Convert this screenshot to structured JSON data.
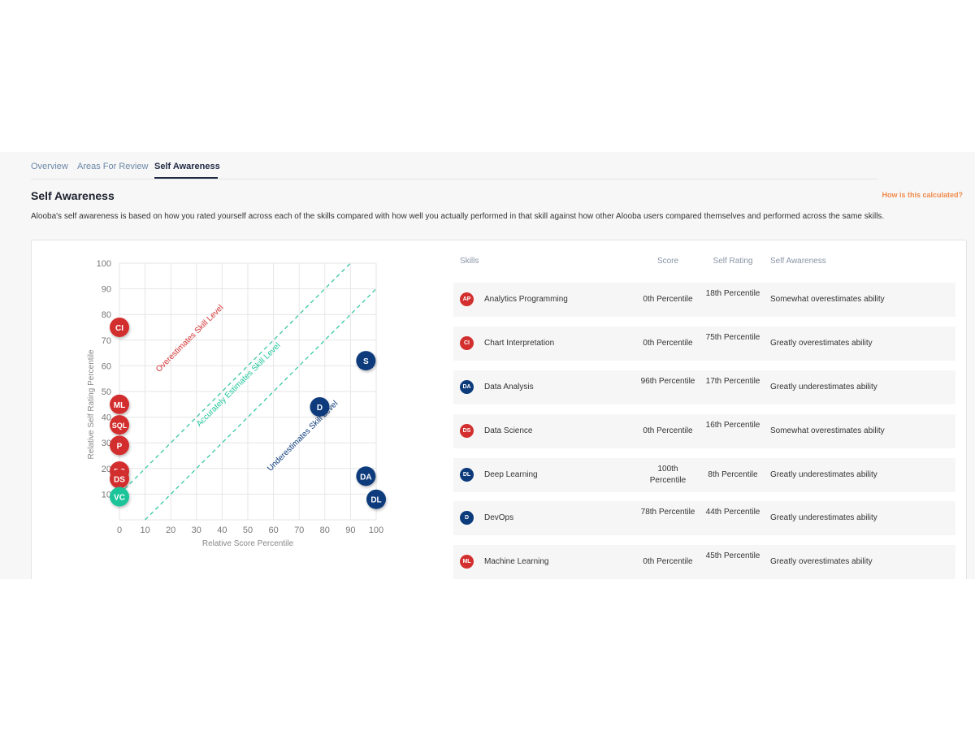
{
  "tabs": [
    {
      "label": "Overview",
      "active": false
    },
    {
      "label": "Areas For Review",
      "active": false
    },
    {
      "label": "Self Awareness",
      "active": true
    }
  ],
  "section_title": "Self Awareness",
  "help_link": "How is this calculated?",
  "description": "Alooba's self awareness is based on how you rated yourself across each of the skills compared with how well you actually performed in that skill against how other Alooba users compared themselves and performed across the same skills.",
  "colors": {
    "over": "#d32f2f",
    "under": "#0c3b7c",
    "accurate": "#1dc49a",
    "diagonal": "#3cc7a4"
  },
  "chart_data": {
    "type": "scatter",
    "xlabel": "Relative Score Percentile",
    "ylabel": "Relative Self Rating Percentile",
    "xlim": [
      0,
      100
    ],
    "ylim": [
      0,
      100
    ],
    "xticks": [
      0,
      10,
      20,
      30,
      40,
      50,
      60,
      70,
      80,
      90,
      100
    ],
    "yticks": [
      10,
      20,
      30,
      40,
      50,
      60,
      70,
      80,
      90,
      100
    ],
    "grid": true,
    "annotations": [
      {
        "text": "Overestimates Skill Level",
        "color": "over"
      },
      {
        "text": "Accurately Estimates Skill Level",
        "color": "accurate"
      },
      {
        "text": "Underestimates Skill Level",
        "color": "under"
      }
    ],
    "reference_lines": [
      {
        "x": [
          0,
          90
        ],
        "y": [
          10,
          100
        ]
      },
      {
        "x": [
          10,
          100
        ],
        "y": [
          0,
          90
        ]
      }
    ],
    "points": [
      {
        "label": "CI",
        "x": 0,
        "y": 75,
        "category": "over"
      },
      {
        "label": "ML",
        "x": 0,
        "y": 45,
        "category": "over"
      },
      {
        "label": "SQL",
        "x": 0,
        "y": 37,
        "category": "over"
      },
      {
        "label": "P",
        "x": 0,
        "y": 29,
        "category": "over"
      },
      {
        "label": "DS",
        "x": 0,
        "y": 19,
        "category": "over"
      },
      {
        "label": "DS",
        "x": 0,
        "y": 16,
        "category": "over"
      },
      {
        "label": "VC",
        "x": 0,
        "y": 9,
        "category": "accurate"
      },
      {
        "label": "S",
        "x": 96,
        "y": 62,
        "category": "under"
      },
      {
        "label": "D",
        "x": 78,
        "y": 44,
        "category": "under"
      },
      {
        "label": "DA",
        "x": 96,
        "y": 17,
        "category": "under"
      },
      {
        "label": "DL",
        "x": 100,
        "y": 8,
        "category": "under"
      }
    ]
  },
  "table": {
    "headers": {
      "skills": "Skills",
      "score": "Score",
      "rating": "Self Rating",
      "awareness": "Self Awareness"
    },
    "rows": [
      {
        "abbr": "AP",
        "skill": "Analytics Programming",
        "score": "0th Percentile",
        "rating": "18th Percentile",
        "awareness": "Somewhat overestimates ability",
        "category": "over"
      },
      {
        "abbr": "CI",
        "skill": "Chart Interpretation",
        "score": "0th Percentile",
        "rating": "75th Percentile",
        "awareness": "Greatly overestimates ability",
        "category": "over"
      },
      {
        "abbr": "DA",
        "skill": "Data Analysis",
        "score": "96th Percentile",
        "rating": "17th Percentile",
        "awareness": "Greatly underestimates ability",
        "category": "under"
      },
      {
        "abbr": "DS",
        "skill": "Data Science",
        "score": "0th Percentile",
        "rating": "16th Percentile",
        "awareness": "Somewhat overestimates ability",
        "category": "over"
      },
      {
        "abbr": "DL",
        "skill": "Deep Learning",
        "score": "100th Percentile",
        "rating": "8th Percentile",
        "awareness": "Greatly underestimates ability",
        "category": "under"
      },
      {
        "abbr": "D",
        "skill": "DevOps",
        "score": "78th Percentile",
        "rating": "44th Percentile",
        "awareness": "Greatly underestimates ability",
        "category": "under"
      },
      {
        "abbr": "ML",
        "skill": "Machine Learning",
        "score": "0th Percentile",
        "rating": "45th Percentile",
        "awareness": "Greatly overestimates ability",
        "category": "over"
      }
    ]
  }
}
